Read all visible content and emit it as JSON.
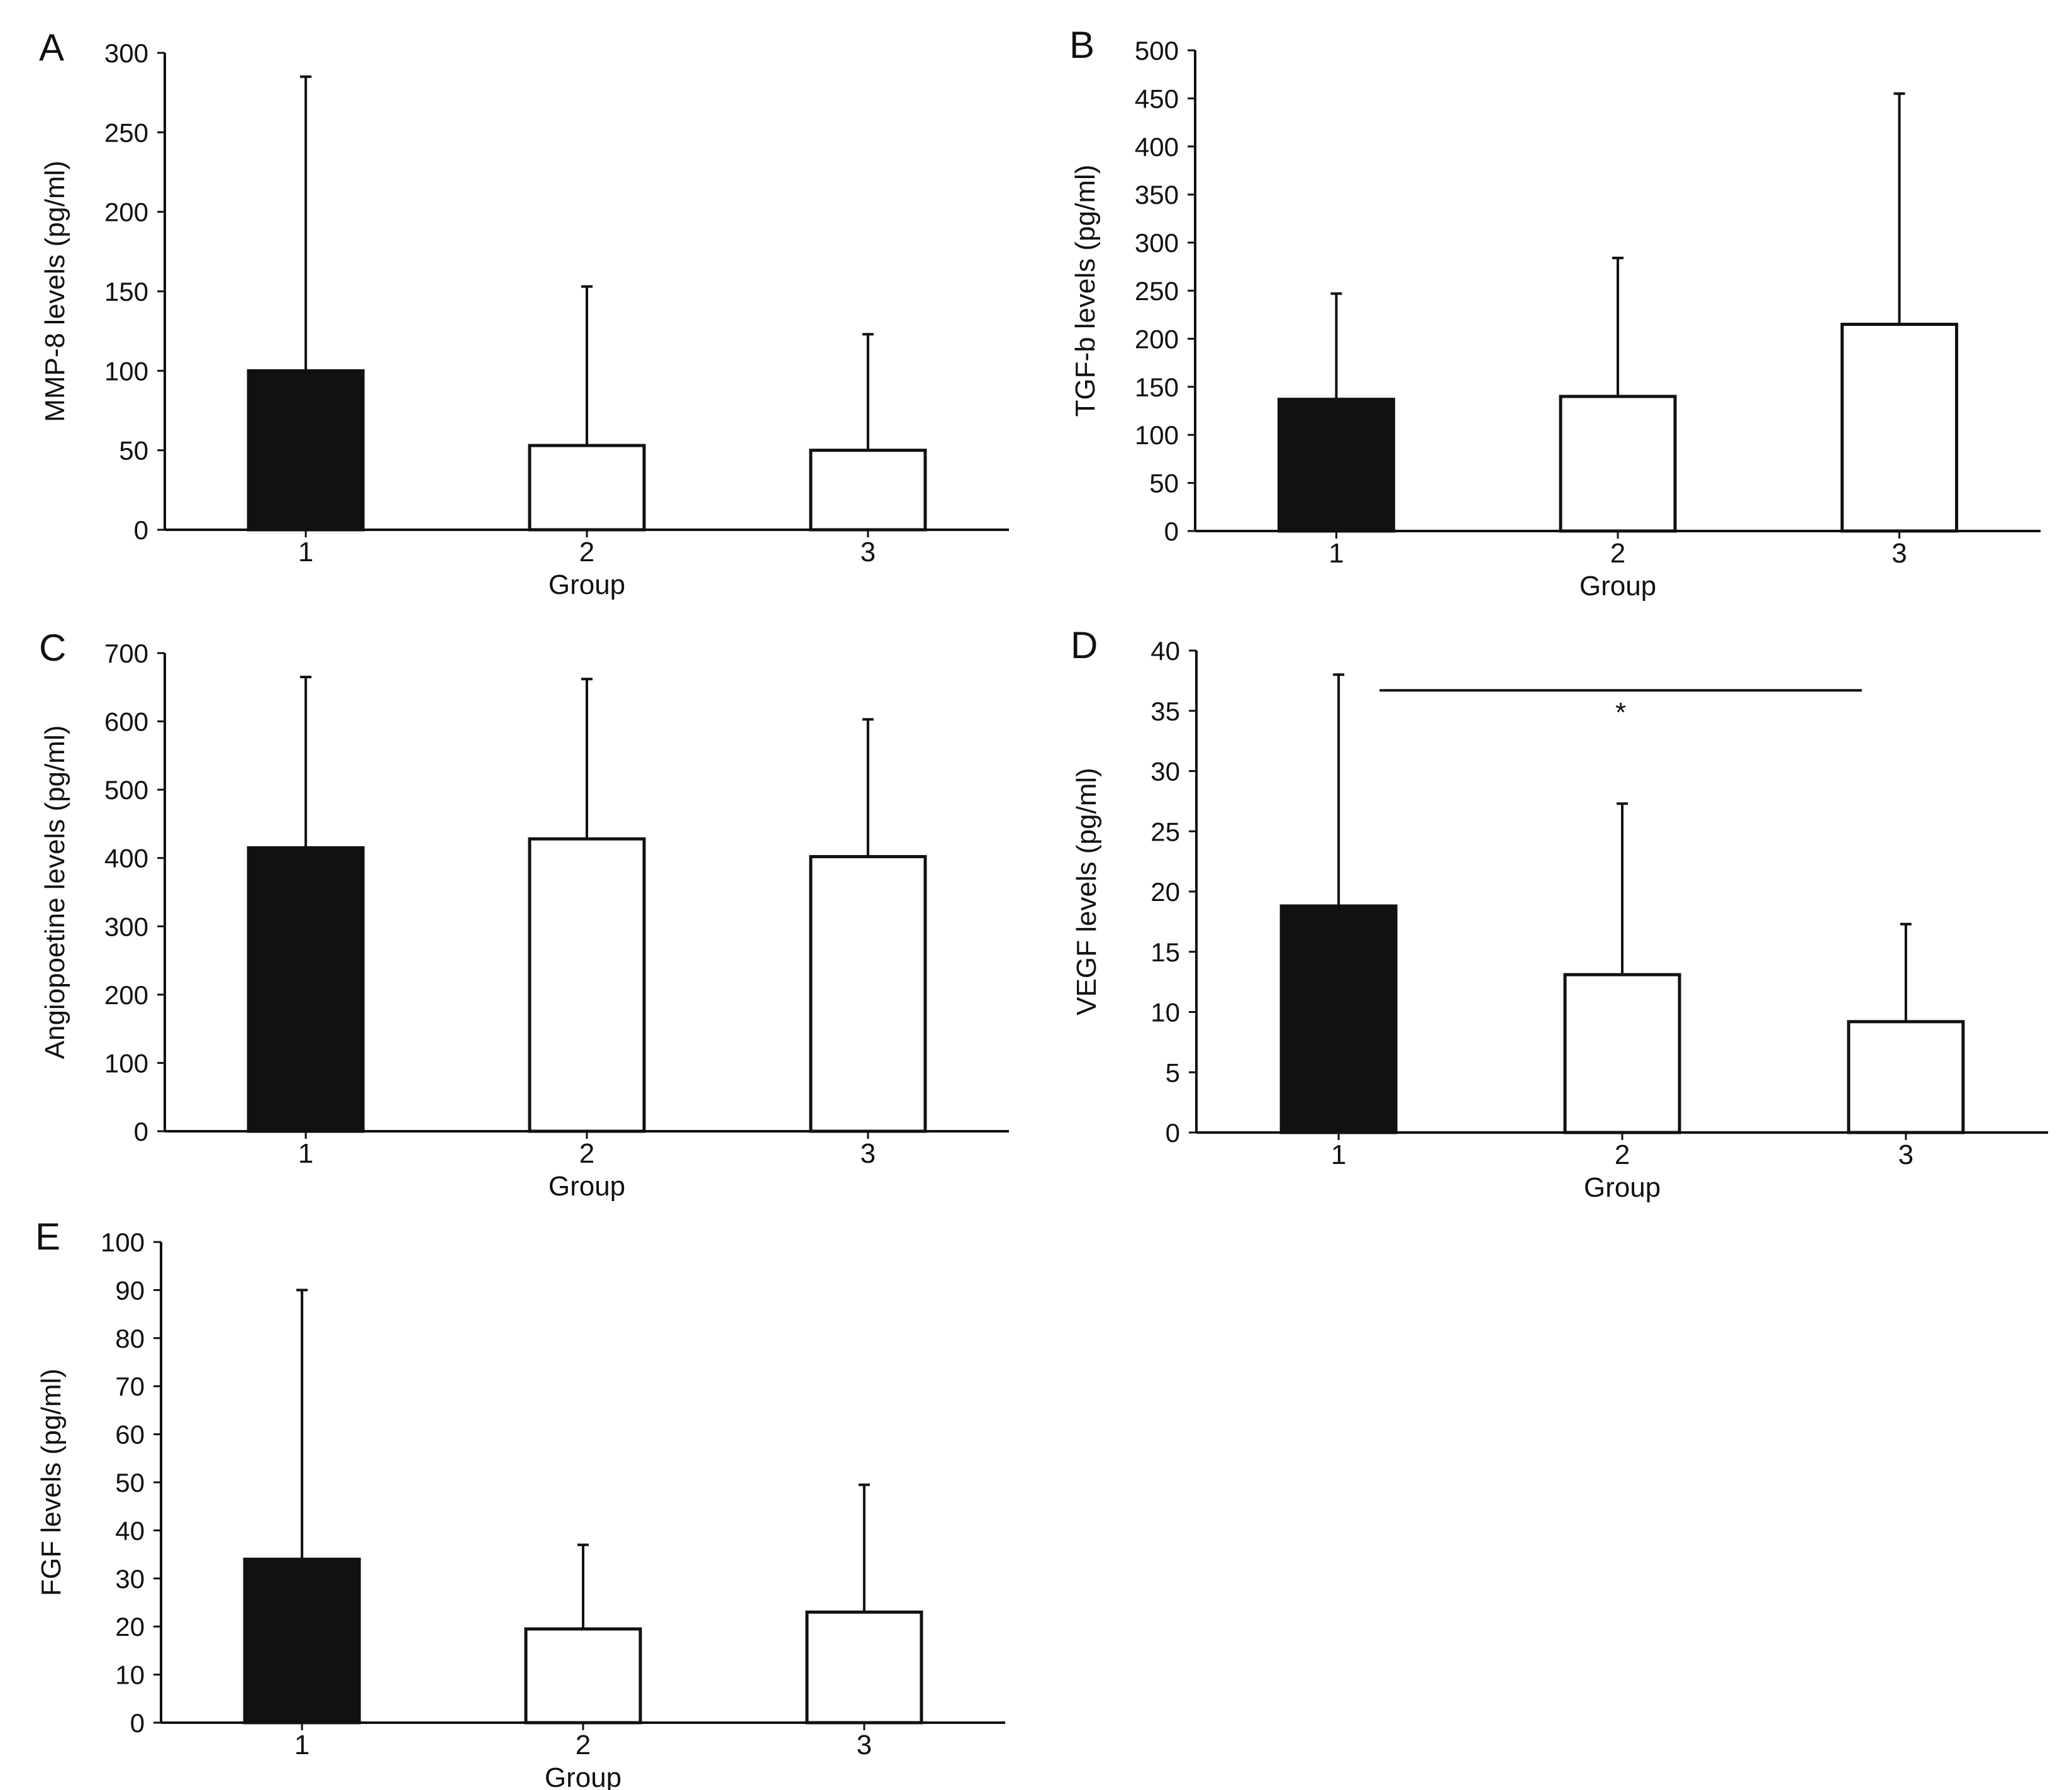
{
  "colors": {
    "axis": "#111111",
    "group1_fill": "#111111",
    "group_other_fill": "#ffffff",
    "bar_stroke": "#111111"
  },
  "chart_data": [
    {
      "panel": "A",
      "type": "bar",
      "categories": [
        "1",
        "2",
        "3"
      ],
      "values": [
        100,
        53,
        50
      ],
      "error_upper": [
        285,
        153,
        123
      ],
      "xlabel": "Group",
      "ylabel": "MMP-8 levels (pg/ml)",
      "ylim": [
        0,
        300
      ],
      "yticks": [
        0,
        50,
        100,
        150,
        200,
        250,
        300
      ],
      "ytick_labels": [
        "0",
        "50",
        "100",
        "150",
        "200",
        "250",
        "300"
      ]
    },
    {
      "panel": "B",
      "type": "bar",
      "categories": [
        "1",
        "2",
        "3"
      ],
      "values": [
        137,
        140,
        215
      ],
      "error_upper": [
        247,
        284,
        455
      ],
      "xlabel": "Group",
      "ylabel": "TGF-b levels (pg/ml)",
      "ylim": [
        0,
        500
      ],
      "yticks": [
        0,
        50,
        100,
        150,
        200,
        250,
        300,
        350,
        400,
        450,
        500
      ],
      "ytick_labels": [
        "0",
        "50",
        "100",
        "150",
        "200",
        "250",
        "300",
        "350",
        "400",
        "450",
        "500"
      ]
    },
    {
      "panel": "C",
      "type": "bar",
      "categories": [
        "1",
        "2",
        "3"
      ],
      "values": [
        415,
        428,
        402
      ],
      "error_upper": [
        665,
        662,
        603
      ],
      "xlabel": "Group",
      "ylabel": "Angiopoetine levels (pg/ml)",
      "ylim": [
        0,
        700
      ],
      "yticks": [
        0,
        100,
        200,
        300,
        400,
        500,
        600,
        700
      ],
      "ytick_labels": [
        "0",
        "100",
        "200",
        "300",
        "400",
        "500",
        "600",
        "700"
      ]
    },
    {
      "panel": "D",
      "type": "bar",
      "categories": [
        "1",
        "2",
        "3"
      ],
      "values": [
        18.8,
        13.1,
        9.2
      ],
      "error_upper": [
        38,
        27.3,
        17.3
      ],
      "xlabel": "Group",
      "ylabel": "VEGF levels (pg/ml)",
      "ylim": [
        0,
        40
      ],
      "yticks": [
        0,
        5,
        10,
        15,
        20,
        25,
        30,
        35,
        40
      ],
      "ytick_labels": [
        "0",
        "5",
        "10",
        "15",
        "20",
        "25",
        "30",
        "35",
        "40"
      ],
      "significance": {
        "from_category": "1",
        "to_category": "3",
        "level": 36.7,
        "label": "*"
      }
    },
    {
      "panel": "E",
      "type": "bar",
      "categories": [
        "1",
        "2",
        "3"
      ],
      "values": [
        34,
        19.5,
        23
      ],
      "error_upper": [
        90,
        37,
        49.5
      ],
      "xlabel": "Group",
      "ylabel": "FGF levels (pg/ml)",
      "ylim": [
        0,
        100
      ],
      "yticks": [
        0,
        10,
        20,
        30,
        40,
        50,
        60,
        70,
        80,
        90,
        100
      ],
      "ytick_labels": [
        "0",
        "10",
        "20",
        "30",
        "40",
        "50",
        "60",
        "70",
        "80",
        "90",
        "100"
      ]
    }
  ]
}
